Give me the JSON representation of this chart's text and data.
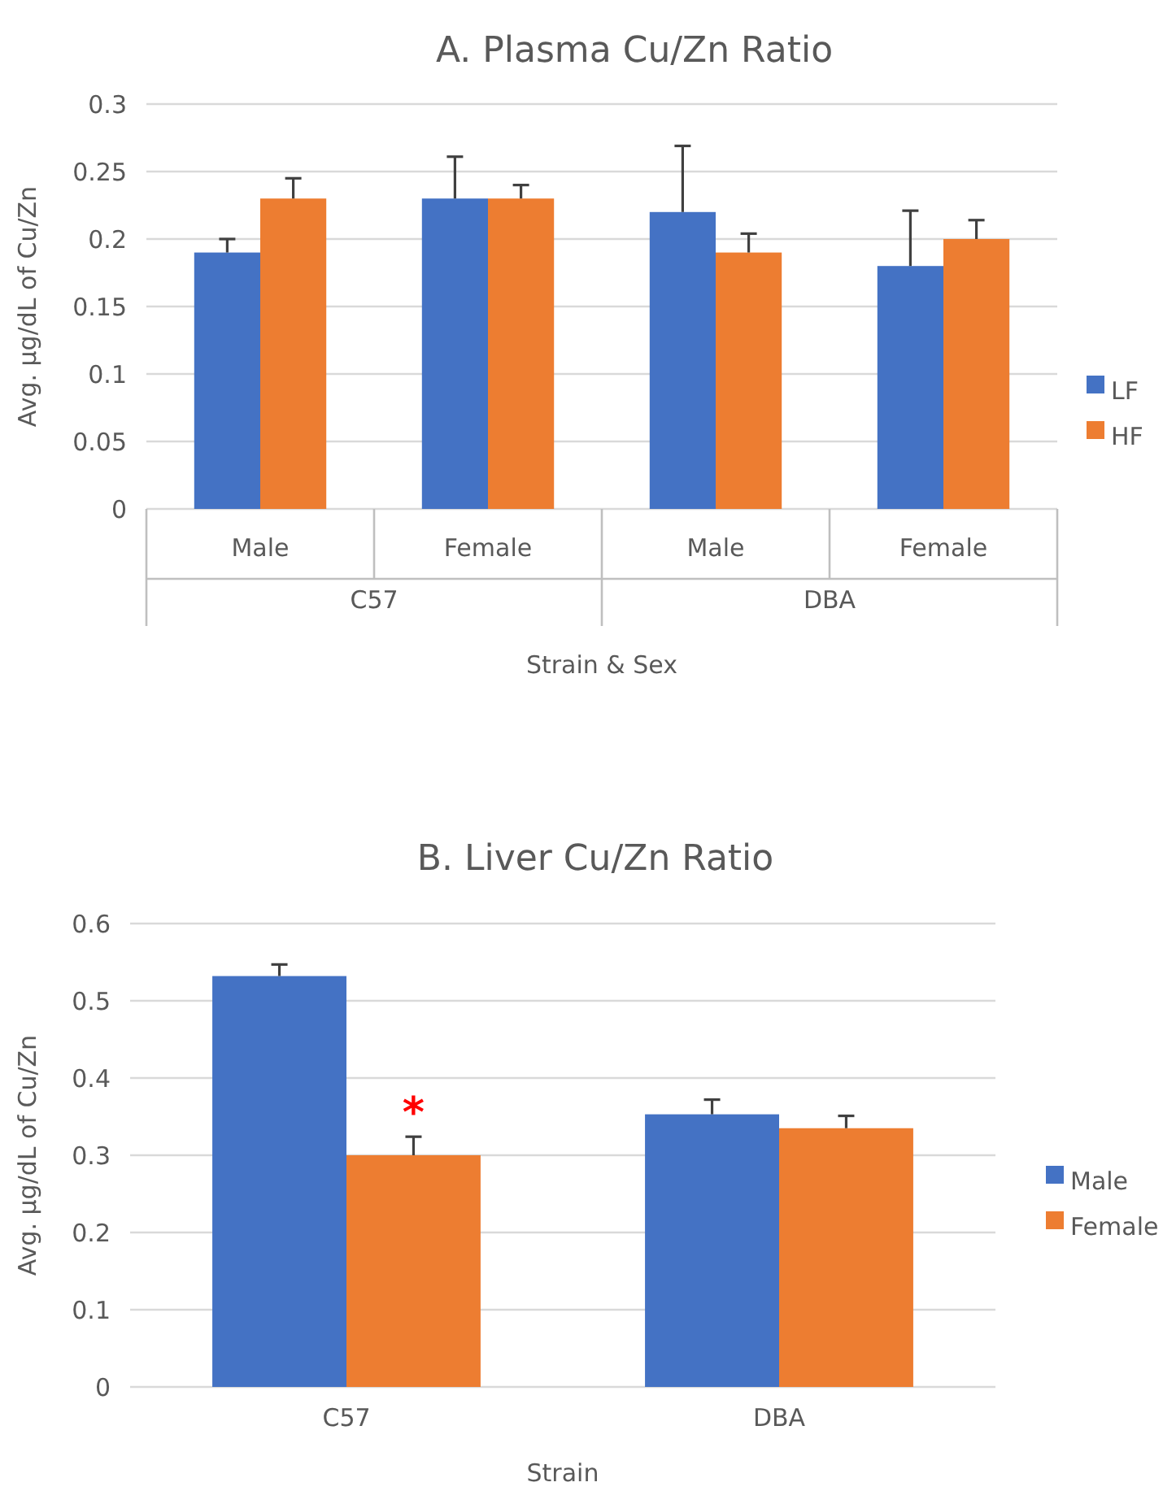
{
  "chart_data": [
    {
      "type": "bar",
      "title": "A. Plasma Cu/Zn Ratio",
      "xlabel": "Strain & Sex",
      "ylabel": "Avg. µg/dL of Cu/Zn",
      "categories": [
        "Male",
        "Female",
        "Male",
        "Female"
      ],
      "annotations": [
        "C57",
        "DBA"
      ],
      "series": [
        {
          "name": "LF",
          "color": "#4472c4",
          "values": [
            0.19,
            0.23,
            0.22,
            0.18
          ],
          "errors": [
            [
              0.19,
              0.2
            ],
            [
              0.23,
              0.261
            ],
            [
              0.22,
              0.269
            ],
            [
              0.18,
              0.221
            ]
          ]
        },
        {
          "name": "HF",
          "color": "#ed7d31",
          "values": [
            0.23,
            0.23,
            0.19,
            0.2
          ],
          "errors": [
            [
              0.23,
              0.245
            ],
            [
              0.23,
              0.24
            ],
            [
              0.19,
              0.204
            ],
            [
              0.2,
              0.214
            ]
          ]
        }
      ],
      "ylim": [
        0,
        0.3
      ],
      "yticks": [
        0,
        0.05,
        0.1,
        0.15,
        0.2,
        0.25,
        0.3
      ],
      "grid": "y",
      "legend": "right"
    },
    {
      "type": "bar",
      "title": "B. Liver Cu/Zn Ratio",
      "xlabel": "Strain",
      "ylabel": "Avg. µg/dL of Cu/Zn",
      "categories": [
        "C57",
        "DBA"
      ],
      "annotations": [
        {
          "text": "*",
          "x": "C57",
          "y": 0.37
        }
      ],
      "series": [
        {
          "name": "Male",
          "color": "#4472c4",
          "values": [
            0.532,
            0.353
          ],
          "errors": [
            [
              0.532,
              0.547
            ],
            [
              0.353,
              0.372
            ]
          ]
        },
        {
          "name": "Female",
          "color": "#ed7d31",
          "values": [
            0.3,
            0.335
          ],
          "errors": [
            [
              0.3,
              0.324
            ],
            [
              0.335,
              0.351
            ]
          ]
        }
      ],
      "ylim": [
        0,
        0.6
      ],
      "yticks": [
        0,
        0.1,
        0.2,
        0.3,
        0.4,
        0.5,
        0.6
      ],
      "grid": "y",
      "legend": "right"
    }
  ]
}
